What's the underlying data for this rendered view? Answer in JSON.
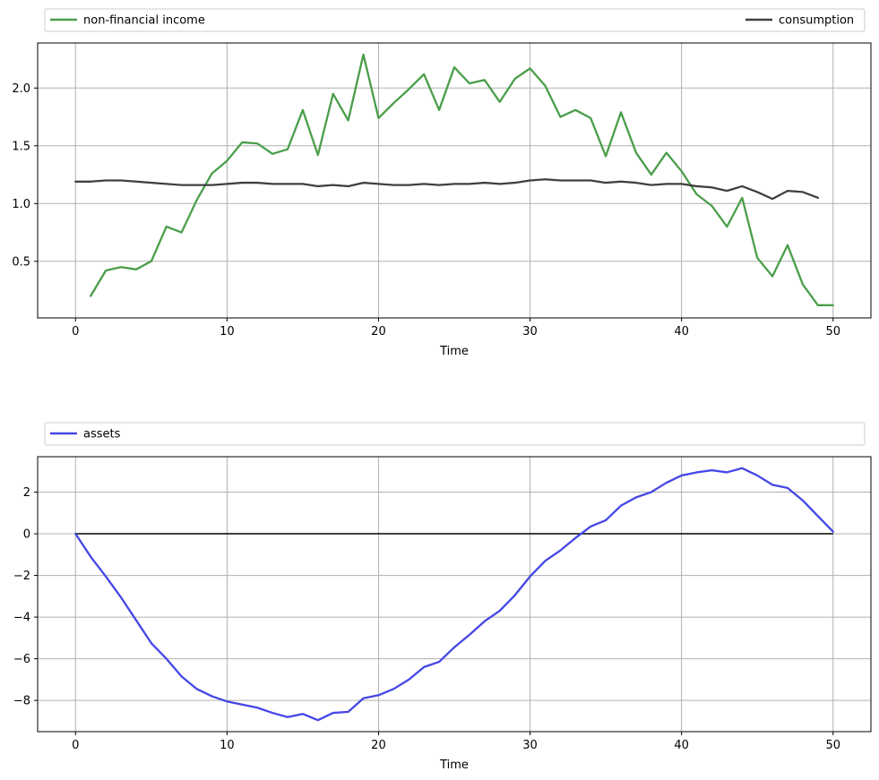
{
  "chart_data": [
    {
      "type": "line",
      "xlabel": "Time",
      "ylabel": "",
      "xlim": [
        -2.5,
        52.5
      ],
      "ylim": [
        0.01,
        2.39
      ],
      "xticks": [
        0,
        10,
        20,
        30,
        40,
        50
      ],
      "yticks": [
        0.5,
        1.0,
        1.5,
        2.0
      ],
      "grid": true,
      "legend_placement": "top-outside",
      "series": [
        {
          "name": "non-financial income",
          "color": "#4a9e4a",
          "x_start": 1,
          "values": [
            0.2,
            0.42,
            0.45,
            0.43,
            0.5,
            0.8,
            0.75,
            1.03,
            1.26,
            1.37,
            1.53,
            1.52,
            1.43,
            1.47,
            1.81,
            1.42,
            1.95,
            1.72,
            2.29,
            1.74,
            1.87,
            1.99,
            2.12,
            1.81,
            2.18,
            2.04,
            2.07,
            1.88,
            2.08,
            2.17,
            2.02,
            1.75,
            1.81,
            1.74,
            1.41,
            1.79,
            1.44,
            1.25,
            1.44,
            1.28,
            1.08,
            0.98,
            0.8,
            1.05,
            0.53,
            0.37,
            0.64,
            0.3,
            0.12,
            0.12
          ]
        },
        {
          "name": "consumption",
          "color": "#404040",
          "x_start": 0,
          "values": [
            1.19,
            1.19,
            1.2,
            1.2,
            1.19,
            1.18,
            1.17,
            1.16,
            1.16,
            1.16,
            1.17,
            1.18,
            1.18,
            1.17,
            1.17,
            1.17,
            1.15,
            1.16,
            1.15,
            1.18,
            1.17,
            1.16,
            1.16,
            1.17,
            1.16,
            1.17,
            1.17,
            1.18,
            1.17,
            1.18,
            1.2,
            1.21,
            1.2,
            1.2,
            1.2,
            1.18,
            1.19,
            1.18,
            1.16,
            1.17,
            1.17,
            1.15,
            1.14,
            1.11,
            1.15,
            1.1,
            1.04,
            1.11,
            1.1,
            1.05
          ]
        }
      ]
    },
    {
      "type": "line",
      "xlabel": "Time",
      "ylabel": "",
      "xlim": [
        -2.5,
        52.5
      ],
      "ylim": [
        -9.5,
        3.7
      ],
      "xticks": [
        0,
        10,
        20,
        30,
        40,
        50
      ],
      "yticks": [
        -8,
        -6,
        -4,
        -2,
        0,
        2
      ],
      "grid": true,
      "legend_placement": "top-outside",
      "hline": {
        "y": 0,
        "color": "#000000"
      },
      "series": [
        {
          "name": "assets",
          "color": "#4646e6",
          "x_start": 0,
          "values": [
            0.0,
            -1.1,
            -2.05,
            -3.05,
            -4.15,
            -5.25,
            -6.0,
            -6.85,
            -7.45,
            -7.8,
            -8.05,
            -8.2,
            -8.35,
            -8.6,
            -8.8,
            -8.65,
            -8.95,
            -8.6,
            -8.55,
            -7.9,
            -7.75,
            -7.45,
            -7.0,
            -6.4,
            -6.15,
            -5.45,
            -4.85,
            -4.2,
            -3.7,
            -2.95,
            -2.05,
            -1.3,
            -0.8,
            -0.2,
            0.35,
            0.65,
            1.35,
            1.75,
            2.0,
            2.45,
            2.8,
            2.95,
            3.05,
            2.95,
            3.15,
            2.8,
            2.35,
            2.2,
            1.6,
            0.85,
            0.1
          ]
        }
      ]
    }
  ]
}
